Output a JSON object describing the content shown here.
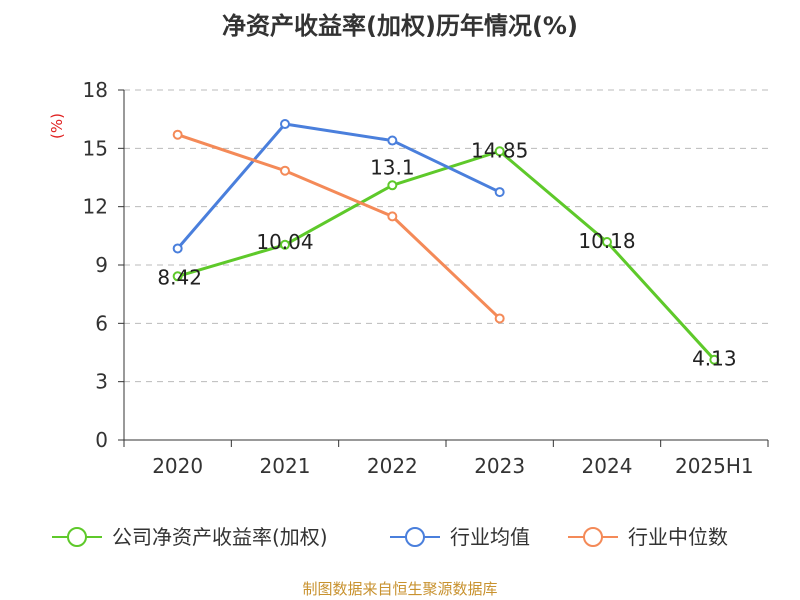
{
  "title": "净资产收益率(加权)历年情况(%)",
  "source": "制图数据来自恒生聚源数据库",
  "colors": {
    "axis": "#333333",
    "grid": "#bbbbbb",
    "unit": "#e02020",
    "source": "#c8922f"
  },
  "chart_data": {
    "type": "line",
    "title": "净资产收益率(加权)历年情况(%)",
    "ylabel": "(%)",
    "categories": [
      "2020",
      "2021",
      "2022",
      "2023",
      "2024",
      "2025H1"
    ],
    "ylim": [
      0,
      18
    ],
    "yticks": [
      0,
      3,
      6,
      9,
      12,
      15,
      18
    ],
    "grid": true,
    "legend_position": "bottom",
    "series": [
      {
        "name": "公司净资产收益率(加权)",
        "color": "#5ec92a",
        "values": [
          8.42,
          10.04,
          13.1,
          14.85,
          10.18,
          4.13
        ],
        "labels": [
          "8.42",
          "10.04",
          "13.1",
          "14.85",
          "10.18",
          "4.13"
        ]
      },
      {
        "name": "行业均值",
        "color": "#4a7fdc",
        "values": [
          9.85,
          16.25,
          15.4,
          12.75,
          null,
          null
        ]
      },
      {
        "name": "行业中位数",
        "color": "#f48a58",
        "values": [
          15.7,
          13.85,
          11.5,
          6.25,
          null,
          null
        ]
      }
    ]
  }
}
